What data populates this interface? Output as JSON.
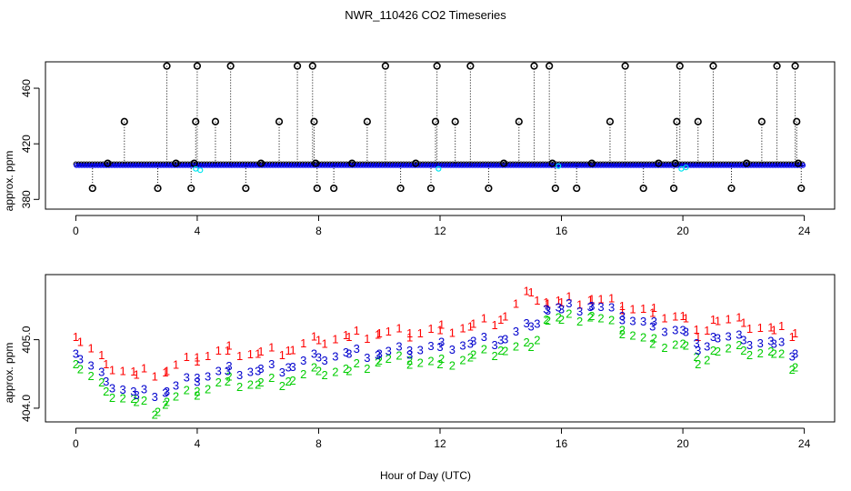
{
  "title": "NWR_110426  CO2 Timeseries",
  "xlabel": "Hour of Day (UTC)",
  "colors": {
    "circle": "#000000",
    "blue": "#0000ff",
    "cyan": "#00e5ee",
    "red": "#ff0000",
    "green": "#00cd00",
    "series3": "#0000cd"
  },
  "chart_data": [
    {
      "type": "scatter",
      "title": "NWR_110426  CO2 Timeseries",
      "xlabel": "",
      "ylabel": "approx. ppm",
      "xlim": [
        -1,
        25
      ],
      "ylim": [
        373,
        479
      ],
      "xticks": [
        0,
        4,
        8,
        12,
        16,
        20,
        24
      ],
      "yticks": [
        380,
        420,
        460
      ],
      "grid": false,
      "baseline": 404.5,
      "spikes": [
        {
          "x": 0.55,
          "y": 388
        },
        {
          "x": 1.05,
          "y": 406
        },
        {
          "x": 1.6,
          "y": 436
        },
        {
          "x": 2.7,
          "y": 388
        },
        {
          "x": 3.0,
          "y": 476
        },
        {
          "x": 3.3,
          "y": 406
        },
        {
          "x": 3.8,
          "y": 388
        },
        {
          "x": 3.9,
          "y": 406
        },
        {
          "x": 3.95,
          "y": 436
        },
        {
          "x": 4.0,
          "y": 476
        },
        {
          "x": 4.6,
          "y": 436
        },
        {
          "x": 5.1,
          "y": 476
        },
        {
          "x": 5.6,
          "y": 388
        },
        {
          "x": 6.1,
          "y": 406
        },
        {
          "x": 6.7,
          "y": 436
        },
        {
          "x": 7.3,
          "y": 476
        },
        {
          "x": 7.8,
          "y": 476
        },
        {
          "x": 7.85,
          "y": 436
        },
        {
          "x": 7.9,
          "y": 406
        },
        {
          "x": 7.95,
          "y": 388
        },
        {
          "x": 8.5,
          "y": 388
        },
        {
          "x": 9.1,
          "y": 406
        },
        {
          "x": 9.6,
          "y": 436
        },
        {
          "x": 10.2,
          "y": 476
        },
        {
          "x": 10.7,
          "y": 388
        },
        {
          "x": 11.2,
          "y": 406
        },
        {
          "x": 11.7,
          "y": 388
        },
        {
          "x": 11.85,
          "y": 436
        },
        {
          "x": 11.9,
          "y": 476
        },
        {
          "x": 12.5,
          "y": 436
        },
        {
          "x": 13.0,
          "y": 476
        },
        {
          "x": 13.6,
          "y": 388
        },
        {
          "x": 14.1,
          "y": 406
        },
        {
          "x": 14.6,
          "y": 436
        },
        {
          "x": 15.1,
          "y": 476
        },
        {
          "x": 15.6,
          "y": 476
        },
        {
          "x": 15.7,
          "y": 406
        },
        {
          "x": 15.8,
          "y": 388
        },
        {
          "x": 16.5,
          "y": 388
        },
        {
          "x": 17.0,
          "y": 406
        },
        {
          "x": 17.6,
          "y": 436
        },
        {
          "x": 18.1,
          "y": 476
        },
        {
          "x": 18.7,
          "y": 388
        },
        {
          "x": 19.2,
          "y": 406
        },
        {
          "x": 19.7,
          "y": 388
        },
        {
          "x": 19.75,
          "y": 406
        },
        {
          "x": 19.8,
          "y": 436
        },
        {
          "x": 19.9,
          "y": 476
        },
        {
          "x": 20.5,
          "y": 436
        },
        {
          "x": 21.0,
          "y": 476
        },
        {
          "x": 21.6,
          "y": 388
        },
        {
          "x": 22.1,
          "y": 406
        },
        {
          "x": 22.6,
          "y": 436
        },
        {
          "x": 23.1,
          "y": 476
        },
        {
          "x": 23.7,
          "y": 476
        },
        {
          "x": 23.75,
          "y": 436
        },
        {
          "x": 23.8,
          "y": 406
        },
        {
          "x": 23.9,
          "y": 388
        }
      ],
      "cyan_points": [
        {
          "x": 3.95,
          "y": 402
        },
        {
          "x": 4.1,
          "y": 401
        },
        {
          "x": 11.95,
          "y": 402
        },
        {
          "x": 15.9,
          "y": 404
        },
        {
          "x": 19.95,
          "y": 402
        },
        {
          "x": 20.1,
          "y": 403
        }
      ]
    },
    {
      "type": "scatter",
      "title": "",
      "xlabel": "Hour of Day (UTC)",
      "ylabel": "approx. ppm",
      "xlim": [
        -1,
        25
      ],
      "ylim": [
        403.8,
        405.95
      ],
      "xticks": [
        0,
        4,
        8,
        12,
        16,
        20,
        24
      ],
      "yticks": [
        404.0,
        405.0
      ],
      "grid": false,
      "markers": [
        "1",
        "2",
        "3"
      ],
      "series": [
        {
          "marker": "1",
          "x": [
            0,
            1,
            2,
            3,
            4,
            5,
            6,
            7,
            8,
            9,
            10,
            11,
            12,
            13,
            14,
            15,
            15.5,
            16,
            17,
            18,
            19,
            20,
            20.5,
            21,
            22,
            23,
            23.7
          ],
          "y": [
            405.05,
            404.65,
            404.5,
            404.55,
            404.75,
            404.85,
            404.8,
            404.85,
            405.0,
            405.05,
            405.1,
            405.1,
            405.15,
            405.2,
            405.3,
            405.7,
            405.55,
            405.55,
            405.6,
            405.5,
            405.4,
            405.35,
            405.05,
            405.3,
            405.25,
            405.15,
            405.1
          ]
        },
        {
          "marker": "2",
          "x": [
            0,
            1,
            2,
            2.7,
            3,
            4,
            5,
            6,
            7,
            8,
            9,
            10,
            11,
            12,
            13,
            14,
            15,
            15.5,
            16,
            17,
            18,
            19,
            20,
            20.5,
            21,
            22,
            23,
            23.7
          ],
          "y": [
            404.65,
            404.25,
            404.1,
            403.95,
            404.1,
            404.25,
            404.4,
            404.35,
            404.4,
            404.55,
            404.55,
            404.7,
            404.7,
            404.65,
            404.75,
            404.85,
            404.9,
            405.3,
            405.3,
            405.35,
            405.15,
            404.95,
            404.95,
            404.65,
            404.85,
            404.85,
            404.8,
            404.6
          ]
        },
        {
          "marker": "3",
          "x": [
            0,
            1,
            2,
            3,
            4,
            5,
            6,
            7,
            8,
            9,
            10,
            11,
            12,
            13,
            14,
            15,
            15.5,
            16,
            17,
            18,
            19,
            20,
            20.5,
            21,
            22,
            23,
            23.7
          ],
          "y": [
            404.8,
            404.4,
            404.2,
            404.25,
            404.45,
            404.55,
            404.55,
            404.6,
            404.75,
            404.8,
            404.8,
            404.85,
            404.9,
            404.95,
            405.0,
            405.2,
            405.45,
            405.45,
            405.5,
            405.35,
            405.2,
            405.15,
            404.85,
            405.05,
            405.0,
            404.95,
            404.8
          ]
        }
      ]
    }
  ]
}
